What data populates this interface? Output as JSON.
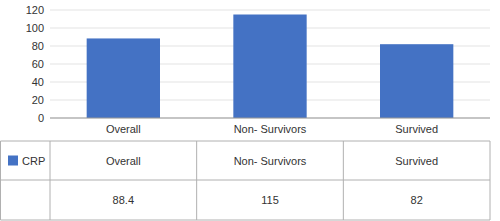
{
  "chart_data": {
    "type": "bar",
    "categories": [
      "Overall",
      "Non- Survivors",
      "Survived"
    ],
    "series": [
      {
        "name": "CRP",
        "color": "#4472C4",
        "values": [
          88.4,
          115,
          82
        ]
      }
    ],
    "ylim": [
      0,
      120
    ],
    "yticks": [
      0,
      20,
      40,
      60,
      80,
      100,
      120
    ],
    "grid": true,
    "legend": "bottom",
    "data_labels": true
  }
}
